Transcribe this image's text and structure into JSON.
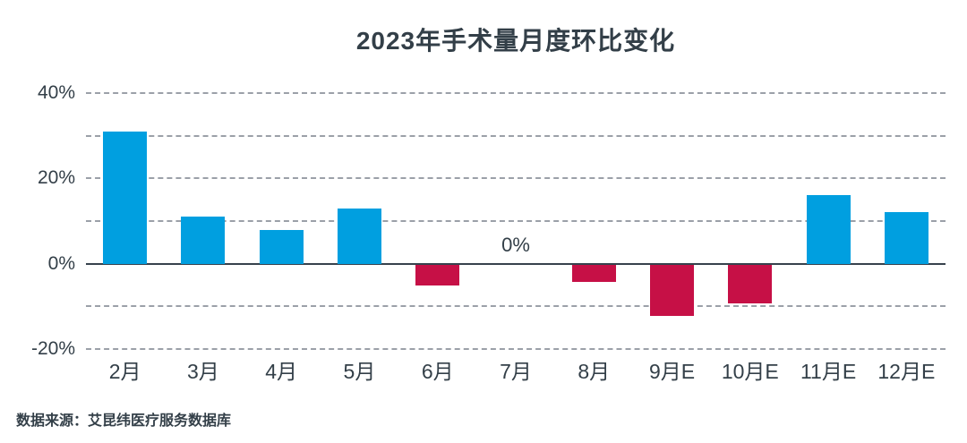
{
  "header": {
    "title": "2023年手术量月度环比变化"
  },
  "footer": {
    "source_label": "数据来源：艾昆纬医疗服务数据库"
  },
  "annotations": {
    "zero_label": "0%",
    "zero_category": "7月"
  },
  "colors": {
    "positive_bar": "#009FE0",
    "negative_bar": "#C61046",
    "text": "#333F48",
    "gridline": "#8A909A",
    "zero_axis": "#37424D",
    "background": "#FFFFFF"
  },
  "y_axis": {
    "labeled_ticks": [
      40,
      20,
      0,
      -20
    ],
    "tick_suffix": "%"
  },
  "chart_data": {
    "type": "bar",
    "title": "2023年手术量月度环比变化",
    "categories": [
      "2月",
      "3月",
      "4月",
      "5月",
      "6月",
      "7月",
      "8月",
      "9月E",
      "10月E",
      "11月E",
      "12月E"
    ],
    "values": [
      31,
      11,
      8,
      13,
      -5,
      0,
      -4,
      -12,
      -9,
      16,
      12
    ],
    "value_unit": "%",
    "xlabel": "",
    "ylabel": "",
    "ylim": [
      -20,
      40
    ],
    "gridlines_dashed": [
      40,
      30,
      20,
      10,
      -10,
      -20
    ],
    "zero_line_solid": true,
    "grid": true,
    "legend_position": "none",
    "annotation_on_zero_bar": "0%"
  }
}
